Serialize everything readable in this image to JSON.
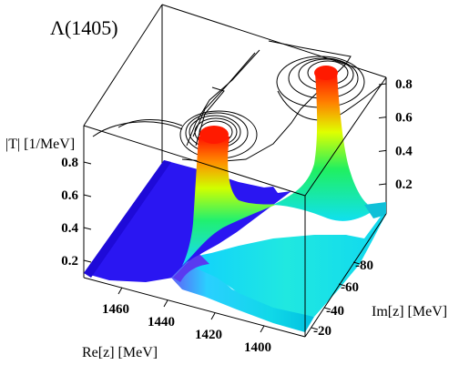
{
  "chart_data": {
    "type": "surface-3d",
    "title": "Λ(1405)",
    "zlabel": "|T| [1/MeV]",
    "xlabel": "Re[z] [MeV]",
    "ylabel": "Im[z] [MeV]",
    "x_ticks": [
      1460,
      1440,
      1420,
      1400
    ],
    "y_ticks": [
      -20,
      -40,
      -60,
      -80
    ],
    "z_ticks_left": [
      0.2,
      0.4,
      0.6,
      0.8
    ],
    "z_ticks_right": [
      0.2,
      0.4,
      0.6,
      0.8
    ],
    "xlim": [
      1470,
      1385
    ],
    "ylim": [
      -15,
      -100
    ],
    "zlim": [
      0,
      0.95
    ],
    "poles": [
      {
        "re": 1426,
        "im": -16,
        "height": 0.9
      },
      {
        "re": 1390,
        "im": -66,
        "height": 0.9
      }
    ],
    "colormap": [
      "#2a10f5",
      "#00e0ff",
      "#00ff40",
      "#ffff00",
      "#ff0000"
    ],
    "top_contours": true,
    "grid": false
  }
}
